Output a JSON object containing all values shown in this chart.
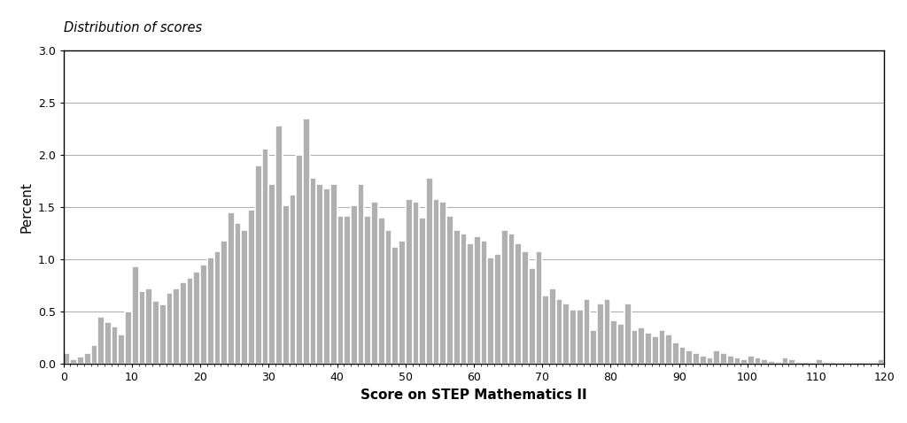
{
  "title": "Distribution of scores",
  "xlabel": "Score on STEP Mathematics II",
  "ylabel": "Percent",
  "bar_color": "#B0B0B0",
  "bar_edge_color": "#FFFFFF",
  "background_color": "#FFFFFF",
  "xlim": [
    0,
    120
  ],
  "ylim": [
    0,
    3.0
  ],
  "xticks": [
    0,
    10,
    20,
    30,
    40,
    50,
    60,
    70,
    80,
    90,
    100,
    110,
    120
  ],
  "yticks": [
    0.0,
    0.5,
    1.0,
    1.5,
    2.0,
    2.5,
    3.0
  ],
  "bar_values": [
    0.1,
    0.04,
    0.07,
    0.1,
    0.18,
    0.45,
    0.4,
    0.36,
    0.28,
    0.5,
    0.93,
    0.7,
    0.72,
    0.6,
    0.57,
    0.68,
    0.72,
    0.78,
    0.82,
    0.88,
    0.95,
    1.02,
    1.08,
    1.18,
    1.45,
    1.35,
    1.28,
    1.48,
    1.9,
    2.06,
    1.72,
    2.28,
    1.52,
    1.62,
    2.0,
    2.35,
    1.78,
    1.72,
    1.68,
    1.72,
    1.42,
    1.42,
    1.52,
    1.72,
    1.42,
    1.55,
    1.4,
    1.28,
    1.12,
    1.18,
    1.58,
    1.55,
    1.4,
    1.78,
    1.58,
    1.55,
    1.42,
    1.28,
    1.25,
    1.15,
    1.22,
    1.18,
    1.02,
    1.05,
    1.28,
    1.25,
    1.15,
    1.08,
    0.92,
    1.08,
    0.65,
    0.72,
    0.62,
    0.58,
    0.52,
    0.52,
    0.62,
    0.32,
    0.58,
    0.62,
    0.42,
    0.38,
    0.58,
    0.32,
    0.35,
    0.3,
    0.26,
    0.32,
    0.28,
    0.2,
    0.16,
    0.13,
    0.1,
    0.08,
    0.06,
    0.13,
    0.1,
    0.08,
    0.06,
    0.04,
    0.08,
    0.06,
    0.04,
    0.03,
    0.02,
    0.06,
    0.04,
    0.02,
    0.02,
    0.01,
    0.04,
    0.02,
    0.02,
    0.01,
    0.01,
    0.01,
    0.01,
    0.01,
    0.0,
    0.04
  ]
}
